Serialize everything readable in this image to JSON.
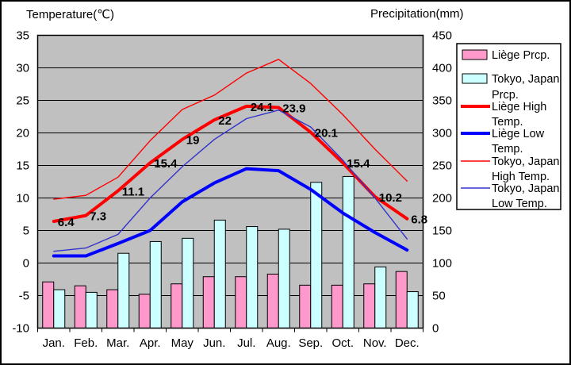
{
  "titles": {
    "temperature_axis": "Temperature(℃)",
    "precipitation_axis": "Precipitation(mm)"
  },
  "chart_data": {
    "type": "bar+line combo climate chart",
    "categories": [
      "Jan.",
      "Feb.",
      "Mar.",
      "Apr.",
      "May",
      "Jun.",
      "Jul.",
      "Aug.",
      "Sep.",
      "Oct.",
      "Nov.",
      "Dec."
    ],
    "temp_axis": {
      "label": "Temperature(℃)",
      "min": -10,
      "max": 35,
      "tick_labels": [
        "35",
        "30",
        "25",
        "20",
        "15",
        "10",
        "5",
        "0",
        "-5",
        "-10"
      ],
      "tick_values": [
        35,
        30,
        25,
        20,
        15,
        10,
        5,
        0,
        -5,
        -10
      ]
    },
    "precip_axis": {
      "label": "Precipitation(mm)",
      "min": 0,
      "max": 450,
      "tick_labels": [
        "450",
        "400",
        "350",
        "300",
        "250",
        "200",
        "150",
        "100",
        "50",
        "0"
      ],
      "tick_values": [
        450,
        400,
        350,
        300,
        250,
        200,
        150,
        100,
        50,
        0
      ]
    },
    "grid": "horizontal lines every 5°C / 50mm",
    "plot_bg_color": "#c0c0c0",
    "series": [
      {
        "key": "liege-prcp",
        "name": "Liège Prcp.",
        "type": "bar",
        "axis": "precip",
        "color": "#ff99cc",
        "values": [
          71,
          65,
          59,
          52,
          68,
          79,
          79,
          83,
          66,
          66,
          68,
          87
        ]
      },
      {
        "key": "tokyo-prcp",
        "name": "Tokyo, Japan Prcp.",
        "type": "bar",
        "axis": "precip",
        "color": "#ccffff",
        "values": [
          59,
          55,
          115,
          133,
          138,
          166,
          156,
          152,
          224,
          233,
          94,
          56
        ]
      },
      {
        "key": "liege-high-temp",
        "name": "Liège High Temp.",
        "type": "line",
        "axis": "temp",
        "color": "#ff0000",
        "stroke_width": 4,
        "values": [
          6.4,
          7.3,
          11.1,
          15.4,
          19,
          22,
          24.1,
          23.9,
          20.1,
          15.4,
          10.2,
          6.8
        ],
        "point_labels": [
          "6.4",
          "7.3",
          "11.1",
          "15.4",
          "19",
          "22",
          "24.1",
          "23.9",
          "20.1",
          "15.4",
          "10.2",
          "6.8"
        ]
      },
      {
        "key": "liege-low-temp",
        "name": "Liège Low Temp.",
        "type": "line",
        "axis": "temp",
        "color": "#0000ff",
        "stroke_width": 4,
        "values": [
          1.1,
          1.1,
          3.0,
          5.0,
          9.4,
          12.3,
          14.5,
          14.2,
          11.3,
          7.7,
          4.7,
          2.0
        ]
      },
      {
        "key": "tokyo-high-temp",
        "name": "Tokyo, Japan High Temp.",
        "type": "line",
        "axis": "temp",
        "color": "#ff0000",
        "stroke_width": 1.4,
        "values": [
          9.8,
          10.4,
          13.2,
          18.8,
          23.6,
          25.8,
          29.2,
          31.3,
          27.6,
          22.8,
          17.5,
          12.6
        ]
      },
      {
        "key": "tokyo-low-temp",
        "name": "Tokyo, Japan Low Temp.",
        "type": "line",
        "axis": "temp",
        "color": "#3333cc",
        "stroke_width": 1.4,
        "values": [
          1.8,
          2.3,
          4.4,
          10.0,
          14.8,
          19.0,
          22.2,
          23.5,
          20.9,
          15.8,
          10.0,
          3.7
        ]
      }
    ],
    "legend": {
      "position": "right",
      "items": [
        {
          "key": "liege-prcp",
          "swatch": "rect",
          "color": "#ff99cc",
          "lines": [
            "Liège Prcp."
          ]
        },
        {
          "key": "tokyo-prcp",
          "swatch": "rect",
          "color": "#ccffff",
          "lines": [
            "Tokyo, Japan",
            "Prcp."
          ]
        },
        {
          "key": "liege-high-temp",
          "swatch": "line-thick",
          "color": "#ff0000",
          "lines": [
            "Liège High",
            "Temp."
          ]
        },
        {
          "key": "liege-low-temp",
          "swatch": "line-thick",
          "color": "#0000ff",
          "lines": [
            "Liège Low",
            "Temp."
          ]
        },
        {
          "key": "tokyo-high-temp",
          "swatch": "line-thin",
          "color": "#ff0000",
          "lines": [
            "Tokyo, Japan",
            "High Temp."
          ]
        },
        {
          "key": "tokyo-low-temp",
          "swatch": "line-thin",
          "color": "#3333cc",
          "lines": [
            "Tokyo, Japan",
            "Low Temp."
          ]
        }
      ]
    }
  }
}
